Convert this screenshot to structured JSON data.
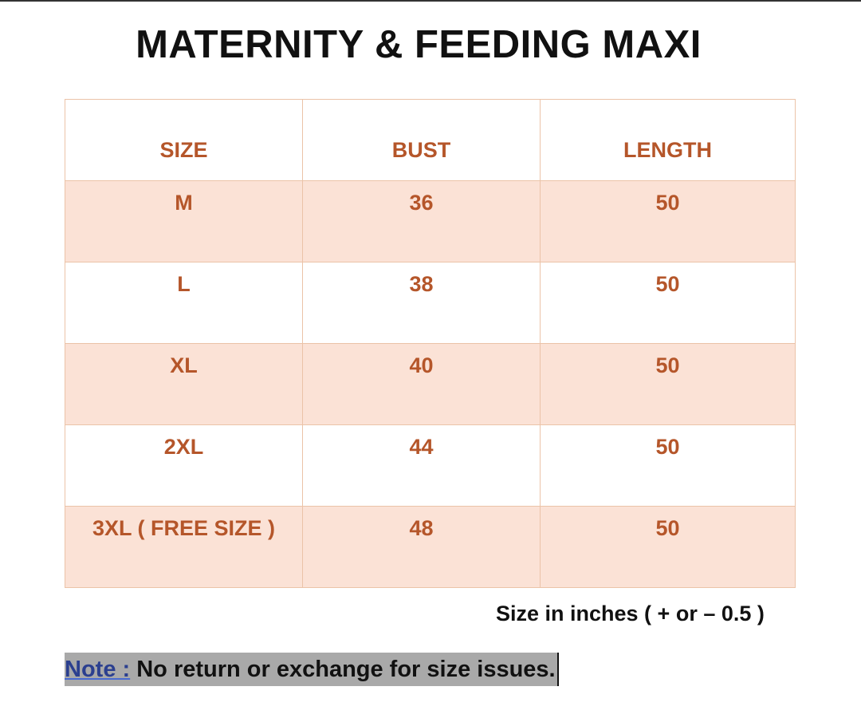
{
  "title": "MATERNITY & FEEDING MAXI",
  "table": {
    "headers": [
      "SIZE",
      "BUST",
      "LENGTH"
    ],
    "rows": [
      [
        "M",
        "36",
        "50"
      ],
      [
        "L",
        "38",
        "50"
      ],
      [
        "XL",
        "40",
        "50"
      ],
      [
        "2XL",
        "44",
        "50"
      ],
      [
        "3XL ( FREE SIZE )",
        "48",
        "50"
      ]
    ]
  },
  "unit_note": "Size in inches ( + or  – 0.5 )",
  "note": {
    "label": "Note :",
    "text": " No return or exchange for size issues."
  },
  "colors": {
    "text": "#b5562a",
    "row_fill": "#fbe2d6",
    "border": "#ebc3a8"
  }
}
